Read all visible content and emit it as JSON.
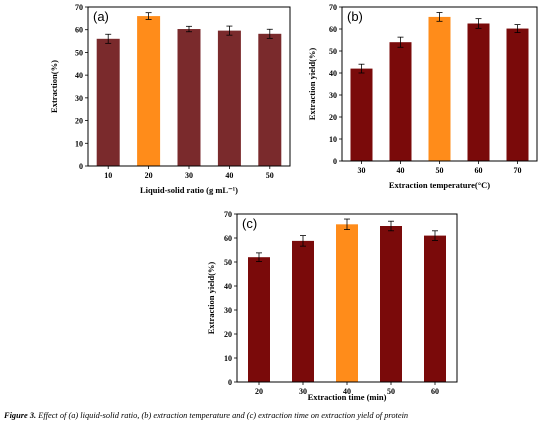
{
  "chart_data": [
    {
      "type": "bar",
      "panel_label": "(a)",
      "categories": [
        "10",
        "20",
        "30",
        "40",
        "50"
      ],
      "values": [
        56.0,
        66.0,
        60.3,
        59.6,
        58.2
      ],
      "errors": [
        2.0,
        1.5,
        1.2,
        2.0,
        2.0
      ],
      "highlight_index": 1,
      "bar_color": "#7a2a2c",
      "highlight_color": "#ff8c1a",
      "xlabel": "Liquid-solid ratio (g mL⁻¹)",
      "ylabel": "Extraction(%)",
      "ylim": [
        0,
        70
      ],
      "yticks": [
        "0",
        "10",
        "20",
        "30",
        "40",
        "50",
        "60",
        "70"
      ],
      "grid": false
    },
    {
      "type": "bar",
      "panel_label": "(b)",
      "categories": [
        "30",
        "40",
        "50",
        "60",
        "70"
      ],
      "values": [
        42.0,
        54.0,
        65.5,
        62.5,
        60.2
      ],
      "errors": [
        2.0,
        2.3,
        2.0,
        2.2,
        1.8
      ],
      "highlight_index": 2,
      "bar_color": "#7a0a0a",
      "highlight_color": "#ff8c1a",
      "xlabel": "Extraction temperature(°C)",
      "ylabel": "Extraction yield(%)",
      "ylim": [
        0,
        70
      ],
      "yticks": [
        "0",
        "10",
        "20",
        "30",
        "40",
        "50",
        "60",
        "70"
      ],
      "grid": false
    },
    {
      "type": "bar",
      "panel_label": "(c)",
      "categories": [
        "20",
        "30",
        "40",
        "50",
        "60"
      ],
      "values": [
        52.0,
        58.8,
        65.7,
        65.0,
        61.0
      ],
      "errors": [
        1.8,
        2.2,
        2.2,
        2.0,
        2.0
      ],
      "highlight_index": 2,
      "bar_color": "#7a0a0a",
      "highlight_color": "#ff8c1a",
      "xlabel": "Extraction time (min)",
      "ylabel": "Extraction yield(%)",
      "ylim": [
        0,
        70
      ],
      "yticks": [
        "0",
        "10",
        "20",
        "30",
        "40",
        "50",
        "60",
        "70"
      ],
      "grid": false
    }
  ],
  "caption": {
    "label": "Figure 3.",
    "text": " Effect of (a) liquid-solid ratio, (b) extraction temperature and (c) extraction time on extraction yield of protein"
  }
}
